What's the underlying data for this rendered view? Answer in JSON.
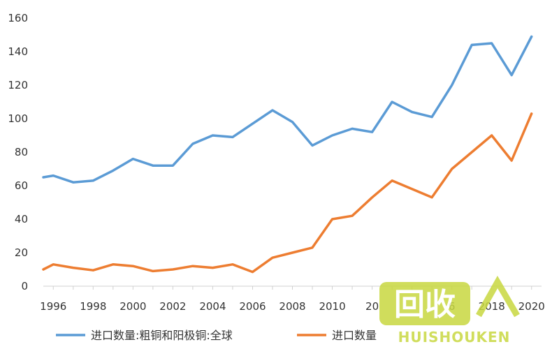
{
  "chart_data": {
    "type": "line",
    "title": "",
    "xlabel": "",
    "ylabel": "",
    "x": [
      1995.5,
      1996,
      1997,
      1998,
      1999,
      2000,
      2001,
      2002,
      2003,
      2004,
      2005,
      2006,
      2007,
      2008,
      2009,
      2010,
      2011,
      2012,
      2013,
      2014,
      2015,
      2016,
      2017,
      2018,
      2019,
      2020
    ],
    "xlim": [
      1995.5,
      2020.5
    ],
    "ylim": [
      0,
      160
    ],
    "x_ticks": [
      "1996",
      "1998",
      "2000",
      "2002",
      "2004",
      "2006",
      "2008",
      "2010",
      "20",
      "6",
      "2018",
      "2020"
    ],
    "y_ticks": [
      "0",
      "20",
      "40",
      "60",
      "80",
      "100",
      "120",
      "140",
      "160"
    ],
    "grid": false,
    "legend_position": "bottom",
    "series": [
      {
        "name": "进口数量:粗铜和阳极铜:全球",
        "color": "#5b9bd5",
        "values": [
          65,
          66,
          62,
          63,
          69,
          76,
          72,
          72,
          85,
          90,
          89,
          97,
          105,
          98,
          84,
          90,
          94,
          92,
          110,
          104,
          101,
          120,
          144,
          145,
          126,
          149
        ]
      },
      {
        "name": "进口数量",
        "color": "#ed7d31",
        "values": [
          10,
          13,
          11,
          9.5,
          13,
          12,
          9,
          10,
          12,
          11,
          13,
          8.5,
          17,
          20,
          23,
          40,
          42,
          53,
          63,
          58,
          53,
          70,
          80,
          90,
          75,
          103
        ]
      }
    ]
  },
  "watermark": {
    "text": "回收",
    "subtext": "HUISHOUKEN"
  }
}
